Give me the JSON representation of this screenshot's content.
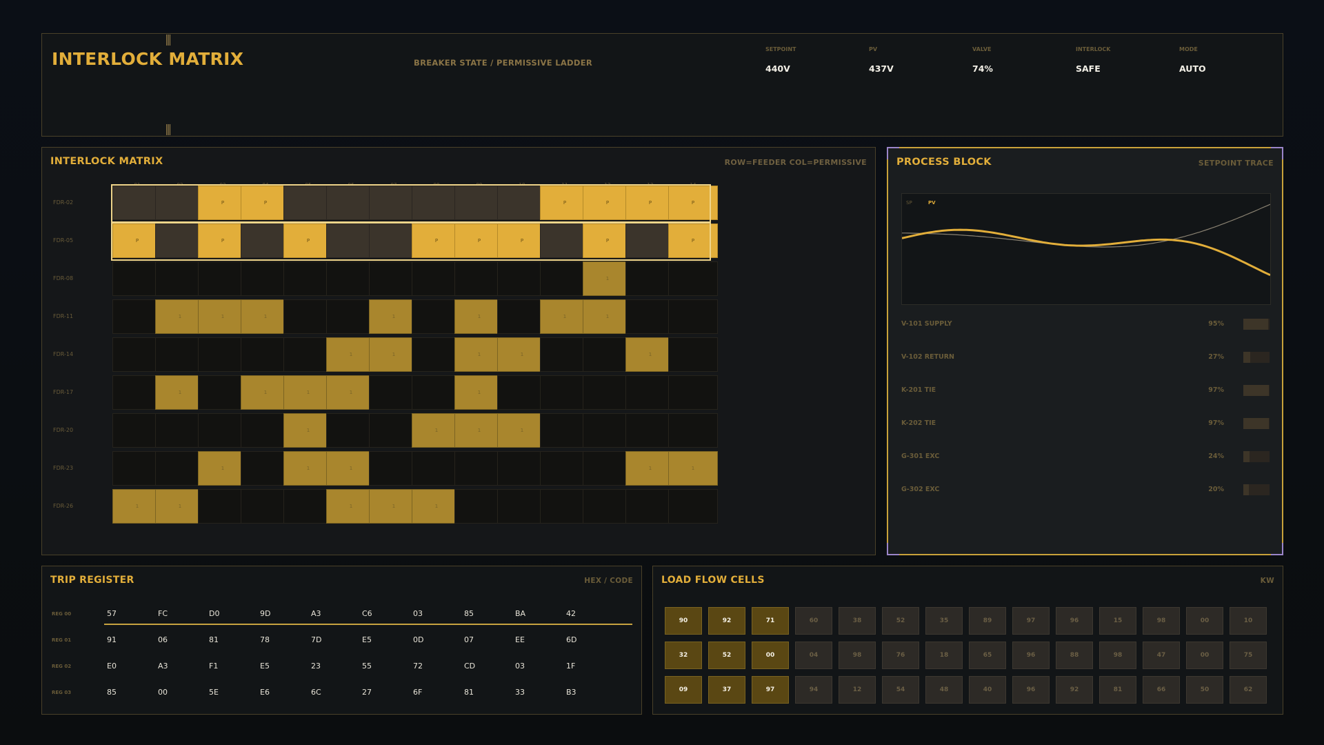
{
  "header": {
    "title": "INTERLOCK MATRIX",
    "subtitle": "BREAKER STATE / PERMISSIVE LADDER",
    "stats": [
      {
        "label": "SETPOINT",
        "value": "440V"
      },
      {
        "label": "PV",
        "value": "437V"
      },
      {
        "label": "VALVE",
        "value": "74%"
      },
      {
        "label": "INTERLOCK",
        "value": "SAFE"
      },
      {
        "label": "MODE",
        "value": "AUTO"
      }
    ]
  },
  "matrix": {
    "title": "INTERLOCK MATRIX",
    "legend": "ROW=FEEDER  COL=PERMISSIVE",
    "columns": [
      "01",
      "02",
      "03",
      "04",
      "05",
      "06",
      "07",
      "08",
      "09",
      "10",
      "11",
      "12",
      "13",
      "14"
    ],
    "rows": [
      {
        "label": "FDR-02",
        "permissive": true,
        "cells": [
          0,
          0,
          1,
          1,
          0,
          0,
          0,
          0,
          0,
          0,
          1,
          1,
          1,
          1
        ]
      },
      {
        "label": "FDR-05",
        "permissive": true,
        "cells": [
          1,
          0,
          1,
          0,
          1,
          0,
          0,
          1,
          1,
          1,
          0,
          1,
          0,
          1
        ]
      },
      {
        "label": "FDR-08",
        "permissive": false,
        "cells": [
          0,
          0,
          0,
          0,
          0,
          0,
          0,
          0,
          0,
          0,
          0,
          1,
          0,
          0
        ]
      },
      {
        "label": "FDR-11",
        "permissive": false,
        "cells": [
          0,
          1,
          1,
          1,
          0,
          0,
          1,
          0,
          1,
          0,
          1,
          1,
          0,
          0
        ]
      },
      {
        "label": "FDR-14",
        "permissive": false,
        "cells": [
          0,
          0,
          0,
          0,
          0,
          1,
          1,
          0,
          1,
          1,
          0,
          0,
          1,
          0
        ]
      },
      {
        "label": "FDR-17",
        "permissive": false,
        "cells": [
          0,
          1,
          0,
          1,
          1,
          1,
          0,
          0,
          1,
          0,
          0,
          0,
          0,
          0
        ]
      },
      {
        "label": "FDR-20",
        "permissive": false,
        "cells": [
          0,
          0,
          0,
          0,
          1,
          0,
          0,
          1,
          1,
          1,
          0,
          0,
          0,
          0
        ]
      },
      {
        "label": "FDR-23",
        "permissive": false,
        "cells": [
          0,
          0,
          1,
          0,
          1,
          1,
          0,
          0,
          0,
          0,
          0,
          0,
          1,
          1
        ]
      },
      {
        "label": "FDR-26",
        "permissive": false,
        "cells": [
          1,
          1,
          0,
          0,
          0,
          1,
          1,
          1,
          0,
          0,
          0,
          0,
          0,
          0
        ]
      }
    ],
    "on_mark": "1",
    "perm_mark": "P"
  },
  "process": {
    "title": "PROCESS BLOCK",
    "right": "SETPOINT TRACE",
    "legend_sp": "SP",
    "legend_pv": "PV",
    "colors": {
      "pv": "#e2ae3a",
      "sp": "#8a8272"
    },
    "valves": [
      {
        "label": "V-101 SUPPLY",
        "pct": "95%",
        "level": 0.95
      },
      {
        "label": "V-102 RETURN",
        "pct": "27%",
        "level": 0.27
      },
      {
        "label": "K-201 TIE",
        "pct": "97%",
        "level": 0.97
      },
      {
        "label": "K-202 TIE",
        "pct": "97%",
        "level": 0.97
      },
      {
        "label": "G-301 EXC",
        "pct": "24%",
        "level": 0.24
      },
      {
        "label": "G-302 EXC",
        "pct": "20%",
        "level": 0.2
      }
    ]
  },
  "trip": {
    "title": "TRIP REGISTER",
    "right": "HEX / CODE",
    "rows": [
      {
        "label": "REG 00",
        "values": [
          "57",
          "FC",
          "D0",
          "9D",
          "A3",
          "C6",
          "03",
          "85",
          "BA",
          "42"
        ]
      },
      {
        "label": "REG 01",
        "values": [
          "91",
          "06",
          "81",
          "78",
          "7D",
          "E5",
          "0D",
          "07",
          "EE",
          "6D"
        ]
      },
      {
        "label": "REG 02",
        "values": [
          "E0",
          "A3",
          "F1",
          "E5",
          "23",
          "55",
          "72",
          "CD",
          "03",
          "1F"
        ]
      },
      {
        "label": "REG 03",
        "values": [
          "85",
          "00",
          "5E",
          "E6",
          "6C",
          "27",
          "6F",
          "81",
          "33",
          "B3"
        ]
      }
    ]
  },
  "loadflow": {
    "title": "LOAD FLOW CELLS",
    "right": "KW",
    "rows": [
      [
        "90",
        "92",
        "71",
        "60",
        "38",
        "52",
        "35",
        "89",
        "97",
        "96",
        "15",
        "98",
        "00",
        "10"
      ],
      [
        "32",
        "52",
        "00",
        "04",
        "98",
        "76",
        "18",
        "65",
        "96",
        "88",
        "98",
        "47",
        "00",
        "75"
      ],
      [
        "09",
        "37",
        "97",
        "94",
        "12",
        "54",
        "48",
        "40",
        "96",
        "92",
        "81",
        "66",
        "50",
        "62"
      ]
    ],
    "hot_columns": 3
  }
}
